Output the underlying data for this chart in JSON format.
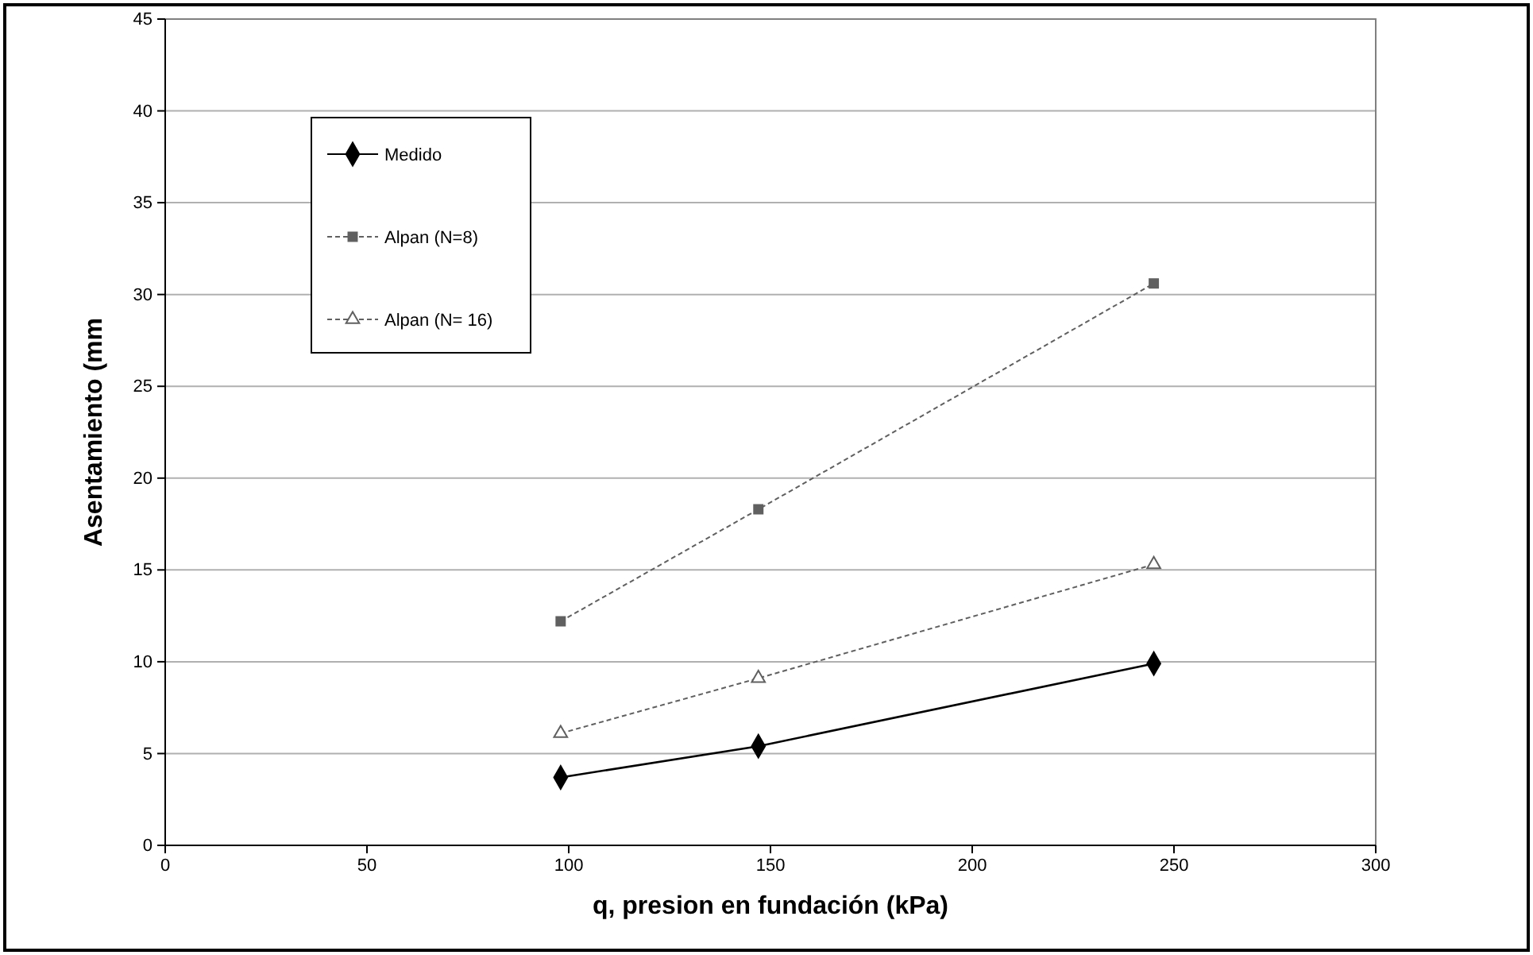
{
  "chart_data": {
    "type": "line",
    "xlabel": "q, presion en fundación (kPa)",
    "ylabel": "Asentamiento (mm",
    "x": [
      98,
      147,
      245
    ],
    "xlim": [
      0,
      300
    ],
    "xticks": [
      0,
      50,
      100,
      150,
      200,
      250,
      300
    ],
    "ylim": [
      0,
      45
    ],
    "yticks": [
      0,
      5,
      10,
      15,
      20,
      25,
      30,
      35,
      40,
      45
    ],
    "grid": "y",
    "legend": "top left",
    "series": [
      {
        "name": "Medido",
        "color": "#000000",
        "values": [
          3.7,
          5.4,
          9.9
        ],
        "marker": "diamond",
        "line_style": "solid"
      },
      {
        "name": "Alpan (N=8)",
        "color": "#606060",
        "values": [
          12.2,
          18.3,
          30.6
        ],
        "marker": "square",
        "line_style": "dashed"
      },
      {
        "name": "Alpan (N= 16)",
        "color": "#606060",
        "values": [
          6.1,
          9.1,
          15.3
        ],
        "marker": "triangle",
        "line_style": "dashed"
      }
    ]
  }
}
